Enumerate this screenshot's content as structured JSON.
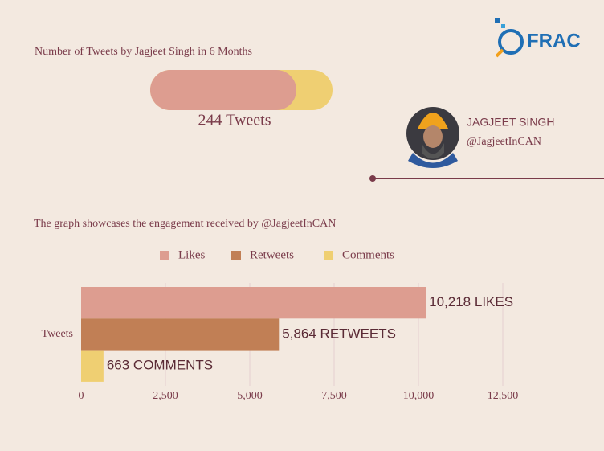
{
  "header": {
    "title": "Number of Tweets by Jagjeet Singh in 6 Months",
    "tweets": {
      "value": 244,
      "label": "244 Tweets"
    }
  },
  "profile": {
    "name": "JAGJEET SINGH",
    "handle": "@JagjeetInCAN"
  },
  "logo": "FRAC",
  "chart_data": {
    "type": "hbar",
    "title": "The graph showcases the engagement received by @JagjeetInCAN",
    "categories": [
      "Tweets"
    ],
    "series": [
      {
        "name": "Likes",
        "color": "#dd9d90",
        "values": [
          10218
        ],
        "value_labels": [
          "10,218 LIKES"
        ]
      },
      {
        "name": "Retweets",
        "color": "#c17f55",
        "values": [
          5864
        ],
        "value_labels": [
          "5,864 RETWEETS"
        ]
      },
      {
        "name": "Comments",
        "color": "#efcf72",
        "values": [
          663
        ],
        "value_labels": [
          "663 COMMENTS"
        ]
      }
    ],
    "xlim": [
      0,
      12500
    ],
    "xticks": [
      0,
      {
        "value": 2500,
        "label": "2,500"
      },
      {
        "value": 5000,
        "label": "5,000"
      },
      {
        "value": 7500,
        "label": "7,500"
      },
      {
        "value": 10000,
        "label": "10,000"
      },
      {
        "value": 12500,
        "label": "12,500"
      }
    ],
    "grid": true,
    "legend": "top"
  }
}
